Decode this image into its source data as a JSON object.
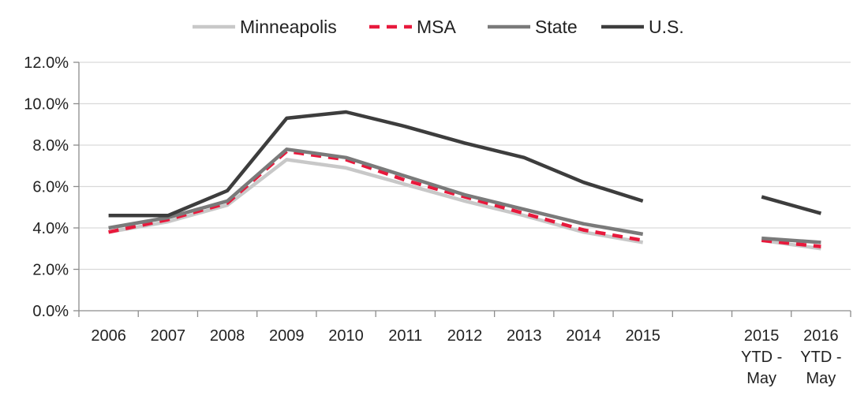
{
  "chart_data": {
    "type": "line",
    "categories": [
      "2006",
      "2007",
      "2008",
      "2009",
      "2010",
      "2011",
      "2012",
      "2013",
      "2014",
      "2015",
      "",
      "2015 YTD - May",
      "2016 YTD - May"
    ],
    "category_lines": [
      [
        "2006"
      ],
      [
        "2007"
      ],
      [
        "2008"
      ],
      [
        "2009"
      ],
      [
        "2010"
      ],
      [
        "2011"
      ],
      [
        "2012"
      ],
      [
        "2013"
      ],
      [
        "2014"
      ],
      [
        "2015"
      ],
      [],
      [
        "2015",
        "YTD -",
        "May"
      ],
      [
        "2016",
        "YTD -",
        "May"
      ]
    ],
    "ylim": [
      0,
      12
    ],
    "yticks": [
      "0.0%",
      "2.0%",
      "4.0%",
      "6.0%",
      "8.0%",
      "10.0%",
      "12.0%"
    ],
    "grid": true,
    "legend_position": "top",
    "series": [
      {
        "name": "Minneapolis",
        "color": "#c8c8c8",
        "dash": "solid",
        "values": [
          3.8,
          4.3,
          5.1,
          7.3,
          6.9,
          6.1,
          5.3,
          4.6,
          3.8,
          3.3,
          null,
          3.4,
          3.0
        ]
      },
      {
        "name": "MSA",
        "color": "#e8193c",
        "dash": "dashed",
        "values": [
          3.8,
          4.4,
          5.2,
          7.7,
          7.3,
          6.3,
          5.5,
          4.7,
          3.9,
          3.4,
          null,
          3.4,
          3.1
        ]
      },
      {
        "name": "State",
        "color": "#7a7a7a",
        "dash": "solid",
        "values": [
          4.0,
          4.5,
          5.3,
          7.8,
          7.4,
          6.5,
          5.6,
          4.9,
          4.2,
          3.7,
          null,
          3.5,
          3.3
        ]
      },
      {
        "name": "U.S.",
        "color": "#3d3d3d",
        "dash": "solid",
        "values": [
          4.6,
          4.6,
          5.8,
          9.3,
          9.6,
          8.9,
          8.1,
          7.4,
          6.2,
          5.3,
          null,
          5.5,
          4.7
        ]
      }
    ]
  }
}
